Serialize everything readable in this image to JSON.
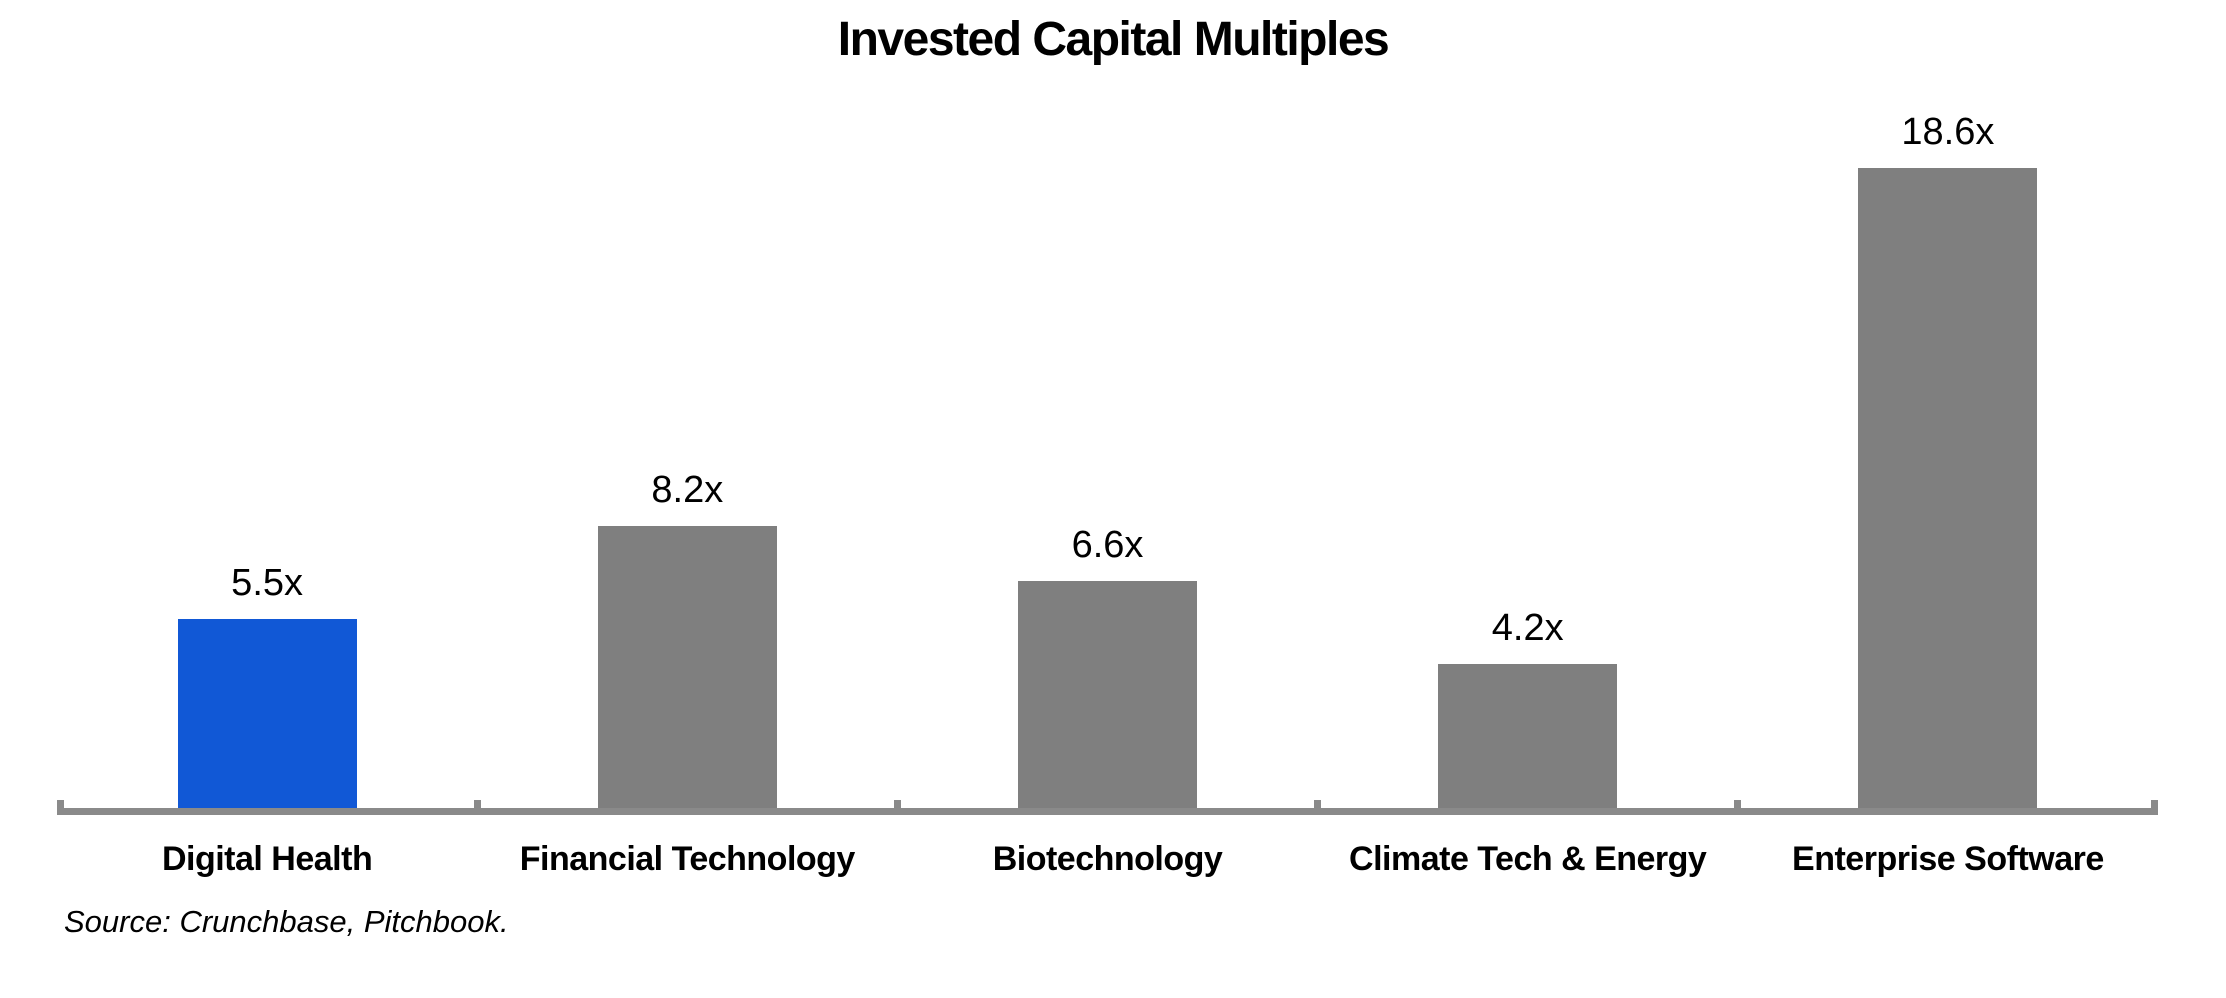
{
  "chart_data": {
    "type": "bar",
    "title": "Invested Capital Multiples",
    "categories": [
      "Digital Health",
      "Financial Technology",
      "Biotechnology",
      "Climate Tech & Energy",
      "Enterprise Software"
    ],
    "values": [
      5.5,
      8.2,
      6.6,
      4.2,
      18.6
    ],
    "data_labels": [
      "5.5x",
      "8.2x",
      "6.6x",
      "4.2x",
      "18.6x"
    ],
    "value_suffix": "x",
    "highlight_index": 0,
    "highlighted_category": "Digital Health",
    "colors": {
      "highlight_bar": "#1158D6",
      "default_bar": "#7F7F7F",
      "axis": "#8A8A8A",
      "text": "#000000"
    },
    "xlabel": "",
    "ylabel": "",
    "ylim": [
      0,
      20
    ],
    "grid": false,
    "legend_position": "none",
    "y_axis_visible": false,
    "x_axis_tick_marks": "boundary-nubs-above-axis",
    "source_note": "Source: Crunchbase, Pitchbook."
  }
}
